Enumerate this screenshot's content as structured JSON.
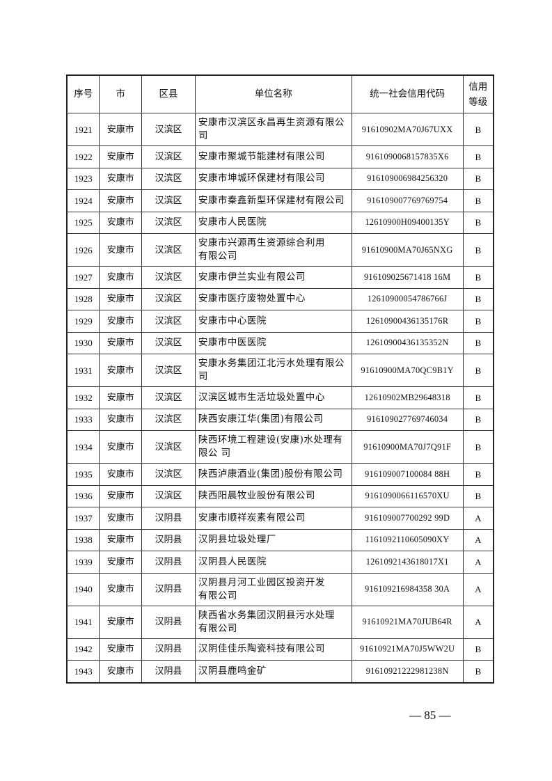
{
  "table": {
    "headers": [
      "序号",
      "市",
      "区县",
      "单位名称",
      "统一社会信用代码",
      "信用\n等级"
    ],
    "rows": [
      {
        "no": "1921",
        "city": "安康市",
        "county": "汉滨区",
        "name": "安康市汉滨区永昌再生资源有限公\n司",
        "code": "91610902MA70J67UXX",
        "grade": "B",
        "lines": 2
      },
      {
        "no": "1922",
        "city": "安康市",
        "county": "汉滨区",
        "name": "安康市聚城节能建材有限公司",
        "code": "9161090068157835X6",
        "grade": "B",
        "lines": 1
      },
      {
        "no": "1923",
        "city": "安康市",
        "county": "汉滨区",
        "name": "安康市坤城环保建材有限公司",
        "code": "916109006984256320",
        "grade": "B",
        "lines": 1
      },
      {
        "no": "1924",
        "city": "安康市",
        "county": "汉滨区",
        "name": "安康市秦鑫新型环保建材有限公司",
        "code": "916109007769769754",
        "grade": "B",
        "lines": 1
      },
      {
        "no": "1925",
        "city": "安康市",
        "county": "汉滨区",
        "name": "安康市人民医院",
        "code": "12610900H09400135Y",
        "grade": "B",
        "lines": 1
      },
      {
        "no": "1926",
        "city": "安康市",
        "county": "汉滨区",
        "name": "安康市兴源再生资源综合利用\n有限公司",
        "code": "91610900MA70J65NXG",
        "grade": "B",
        "lines": 2
      },
      {
        "no": "1927",
        "city": "安康市",
        "county": "汉滨区",
        "name": "安康市伊兰实业有限公司",
        "code": "916109025671418 16M",
        "grade": "B",
        "lines": 1
      },
      {
        "no": "1928",
        "city": "安康市",
        "county": "汉滨区",
        "name": "安康市医疗废物处置中心",
        "code": "12610900054786766J",
        "grade": "B",
        "lines": 1
      },
      {
        "no": "1929",
        "city": "安康市",
        "county": "汉滨区",
        "name": "安康市中心医院",
        "code": "12610900436135176R",
        "grade": "B",
        "lines": 1
      },
      {
        "no": "1930",
        "city": "安康市",
        "county": "汉滨区",
        "name": "安康市中医医院",
        "code": "12610900436135352N",
        "grade": "B",
        "lines": 1
      },
      {
        "no": "1931",
        "city": "安康市",
        "county": "汉滨区",
        "name": "安康水务集团江北污水处理有限公\n司",
        "code": "91610900MA70QC9B1Y",
        "grade": "B",
        "lines": 2
      },
      {
        "no": "1932",
        "city": "安康市",
        "county": "汉滨区",
        "name": "汉滨区城市生活垃圾处置中心",
        "code": "12610902MB29648318",
        "grade": "B",
        "lines": 1
      },
      {
        "no": "1933",
        "city": "安康市",
        "county": "汉滨区",
        "name": "陕西安康江华(集团)有限公司",
        "code": "916109027769746034",
        "grade": "B",
        "lines": 1
      },
      {
        "no": "1934",
        "city": "安康市",
        "county": "汉滨区",
        "name": "陕西环境工程建设(安康)水处理有\n限公 司",
        "code": "91610900MA70J7Q91F",
        "grade": "B",
        "lines": 2
      },
      {
        "no": "1935",
        "city": "安康市",
        "county": "汉滨区",
        "name": "陕西泸康酒业(集团)股份有限公司",
        "code": "916109007100084 88H",
        "grade": "B",
        "lines": 1
      },
      {
        "no": "1936",
        "city": "安康市",
        "county": "汉滨区",
        "name": "陕西阳晨牧业股份有限公司",
        "code": "9161090066116570XU",
        "grade": "B",
        "lines": 1
      },
      {
        "no": "1937",
        "city": "安康市",
        "county": "汉阴县",
        "name": "安康市顺祥炭素有限公司",
        "code": "916109007700292 99D",
        "grade": "A",
        "lines": 1
      },
      {
        "no": "1938",
        "city": "安康市",
        "county": "汉阴县",
        "name": "汉阴县垃圾处理厂",
        "code": "1161092110605090XY",
        "grade": "A",
        "lines": 1
      },
      {
        "no": "1939",
        "city": "安康市",
        "county": "汉阴县",
        "name": "汉阴县人民医院",
        "code": "1261092143618017X1",
        "grade": "A",
        "lines": 1
      },
      {
        "no": "1940",
        "city": "安康市",
        "county": "汉阴县",
        "name": "汉阴县月河工业园区投资开发\n有限公司",
        "code": "916109216984358 30A",
        "grade": "A",
        "lines": 2
      },
      {
        "no": "1941",
        "city": "安康市",
        "county": "汉阴县",
        "name": "陕西省水务集团汉阴县污水处理\n有限公司",
        "code": "91610921MA70JUB64R",
        "grade": "A",
        "lines": 2
      },
      {
        "no": "1942",
        "city": "安康市",
        "county": "汉阴县",
        "name": "汉阴佳佳乐陶瓷科技有限公司",
        "code": "91610921MA70J5WW2U",
        "grade": "B",
        "lines": 1
      },
      {
        "no": "1943",
        "city": "安康市",
        "county": "汉阴县",
        "name": "汉阴县鹿鸣金矿",
        "code": "91610921222981238N",
        "grade": "B",
        "lines": 1
      }
    ]
  },
  "footer": {
    "page_number": "— 85 —"
  }
}
